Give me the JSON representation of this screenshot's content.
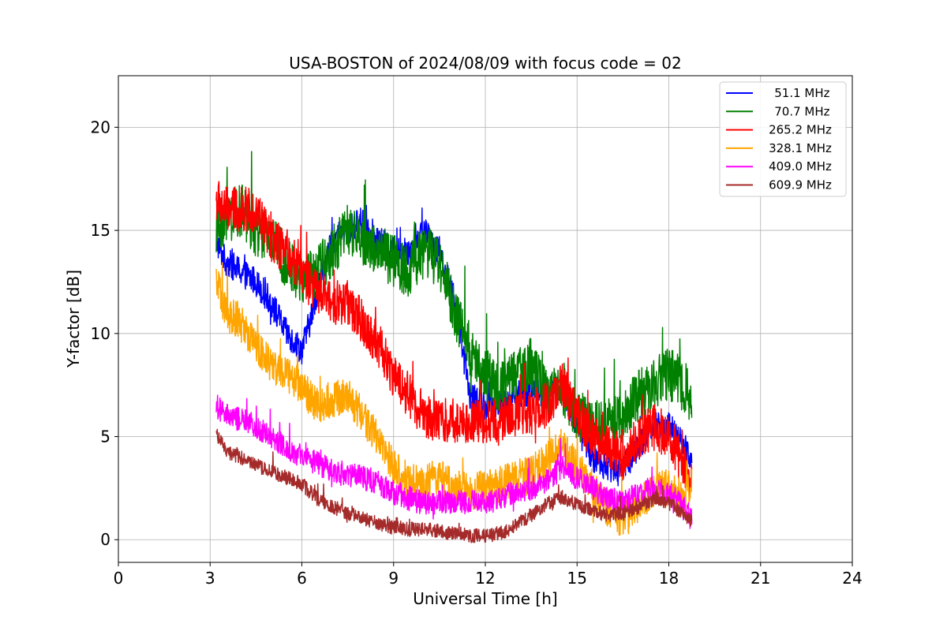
{
  "chart_data": {
    "type": "line",
    "title": "USA-BOSTON of 2024/08/09 with focus code = 02",
    "xlabel": "Universal Time [h]",
    "ylabel": "Y-factor [dB]",
    "xlim": [
      0,
      24
    ],
    "ylim": [
      -1.1,
      22.5
    ],
    "xticks": [
      0,
      3,
      6,
      9,
      12,
      15,
      18,
      21,
      24
    ],
    "yticks": [
      0,
      5,
      10,
      15,
      20
    ],
    "grid": true,
    "legend_position": "top-right",
    "series": [
      {
        "name": " 51.1 MHz",
        "color": "#0000ff",
        "x": [
          3.2,
          3.5,
          4.0,
          4.5,
          5.0,
          5.5,
          6.0,
          6.25,
          6.5,
          7.0,
          7.5,
          8.0,
          8.5,
          9.0,
          9.5,
          10.0,
          10.5,
          11.0,
          11.5,
          12.0,
          12.5,
          13.0,
          13.5,
          14.0,
          14.5,
          15.0,
          15.5,
          16.0,
          16.5,
          17.0,
          17.5,
          18.0,
          18.5,
          18.75
        ],
        "values": [
          14.5,
          13.5,
          13.0,
          12.5,
          11.5,
          10.0,
          9.2,
          10.5,
          12.0,
          14.5,
          15.0,
          15.5,
          14.5,
          14.0,
          14.0,
          15.0,
          14.0,
          11.5,
          7.0,
          6.5,
          6.5,
          7.0,
          7.2,
          7.0,
          7.5,
          5.5,
          4.0,
          3.5,
          3.5,
          4.5,
          5.5,
          5.5,
          4.5,
          4.0
        ],
        "noise": 0.7
      },
      {
        "name": " 70.7 MHz",
        "color": "#008000",
        "x": [
          3.2,
          3.5,
          4.0,
          4.5,
          5.0,
          5.5,
          6.0,
          6.5,
          7.0,
          7.5,
          8.0,
          8.5,
          9.0,
          9.5,
          10.0,
          10.5,
          11.0,
          11.5,
          12.0,
          12.5,
          13.0,
          13.5,
          14.0,
          14.5,
          15.0,
          15.5,
          16.0,
          16.5,
          17.0,
          17.5,
          18.0,
          18.5,
          18.75
        ],
        "values": [
          15.0,
          15.5,
          16.0,
          15.0,
          14.5,
          13.5,
          12.5,
          13.0,
          14.0,
          15.0,
          14.5,
          14.0,
          13.5,
          13.0,
          14.0,
          13.5,
          11.0,
          9.0,
          8.0,
          7.5,
          8.0,
          8.5,
          7.0,
          7.5,
          6.0,
          5.5,
          5.5,
          6.0,
          7.0,
          7.5,
          8.0,
          7.5,
          6.5
        ],
        "noise": 1.3
      },
      {
        "name": "265.2 MHz",
        "color": "#ff0000",
        "x": [
          3.2,
          3.5,
          4.0,
          4.5,
          5.0,
          5.5,
          6.0,
          6.2,
          6.5,
          7.0,
          7.5,
          8.0,
          8.5,
          9.0,
          9.5,
          10.0,
          10.5,
          11.0,
          11.5,
          12.0,
          12.5,
          13.0,
          13.5,
          14.0,
          14.5,
          15.0,
          15.5,
          16.0,
          16.5,
          17.0,
          17.5,
          18.0,
          18.5,
          18.75
        ],
        "values": [
          16.5,
          16.0,
          16.0,
          16.0,
          14.5,
          14.0,
          13.0,
          12.5,
          12.0,
          11.5,
          11.5,
          10.5,
          9.5,
          8.0,
          7.0,
          6.0,
          5.8,
          5.8,
          5.7,
          5.8,
          5.8,
          6.0,
          6.2,
          6.5,
          7.5,
          6.0,
          5.0,
          4.5,
          4.0,
          5.0,
          5.5,
          5.0,
          3.5,
          3.0
        ],
        "noise": 1.1
      },
      {
        "name": "328.1 MHz",
        "color": "#ffa500",
        "x": [
          3.2,
          3.5,
          4.0,
          4.5,
          5.0,
          5.5,
          6.0,
          6.2,
          6.5,
          7.0,
          7.5,
          8.0,
          8.5,
          9.0,
          9.5,
          10.0,
          10.5,
          11.0,
          11.5,
          12.0,
          12.5,
          13.0,
          13.5,
          14.0,
          14.5,
          15.0,
          15.5,
          16.0,
          16.5,
          17.0,
          17.5,
          18.0,
          18.5,
          18.75
        ],
        "values": [
          12.5,
          11.0,
          10.5,
          9.5,
          8.5,
          8.0,
          7.5,
          7.0,
          6.5,
          6.8,
          7.0,
          6.0,
          4.8,
          3.5,
          2.8,
          2.8,
          3.0,
          2.5,
          2.3,
          2.5,
          2.7,
          3.0,
          3.2,
          3.8,
          4.5,
          3.5,
          2.5,
          1.5,
          1.0,
          1.5,
          2.5,
          2.5,
          2.0,
          3.0
        ],
        "noise": 0.9
      },
      {
        "name": "409.0 MHz",
        "color": "#ff00ff",
        "x": [
          3.2,
          3.5,
          4.0,
          4.5,
          5.0,
          5.5,
          6.0,
          6.5,
          7.0,
          7.5,
          8.0,
          8.5,
          9.0,
          9.5,
          10.0,
          10.5,
          11.0,
          11.5,
          12.0,
          12.5,
          13.0,
          13.5,
          14.0,
          14.5,
          15.0,
          15.5,
          16.0,
          16.5,
          17.0,
          17.5,
          18.0,
          18.5,
          18.75
        ],
        "values": [
          6.5,
          6.0,
          5.8,
          5.5,
          5.0,
          4.5,
          4.0,
          3.7,
          3.4,
          3.2,
          3.0,
          2.8,
          2.3,
          2.0,
          1.8,
          1.8,
          1.8,
          1.8,
          1.8,
          2.0,
          2.3,
          2.5,
          2.8,
          3.5,
          3.0,
          2.5,
          2.0,
          1.8,
          2.2,
          2.5,
          2.3,
          1.5,
          1.0
        ],
        "noise": 0.6
      },
      {
        "name": "609.9 MHz",
        "color": "#a52a2a",
        "x": [
          3.2,
          3.5,
          4.0,
          4.5,
          5.0,
          5.5,
          6.0,
          6.5,
          7.0,
          7.5,
          8.0,
          8.5,
          9.0,
          9.5,
          10.0,
          10.5,
          11.0,
          11.5,
          12.0,
          12.5,
          13.0,
          13.5,
          14.0,
          14.5,
          15.0,
          15.5,
          16.0,
          16.5,
          17.0,
          17.5,
          18.0,
          18.5,
          18.75
        ],
        "values": [
          5.2,
          4.3,
          4.0,
          3.6,
          3.3,
          3.0,
          2.7,
          2.0,
          1.6,
          1.3,
          1.0,
          0.8,
          0.6,
          0.5,
          0.5,
          0.4,
          0.3,
          0.2,
          0.2,
          0.3,
          0.7,
          1.2,
          1.7,
          2.1,
          1.7,
          1.4,
          1.2,
          1.3,
          1.6,
          2.0,
          1.8,
          1.2,
          0.9
        ],
        "noise": 0.35
      }
    ]
  }
}
